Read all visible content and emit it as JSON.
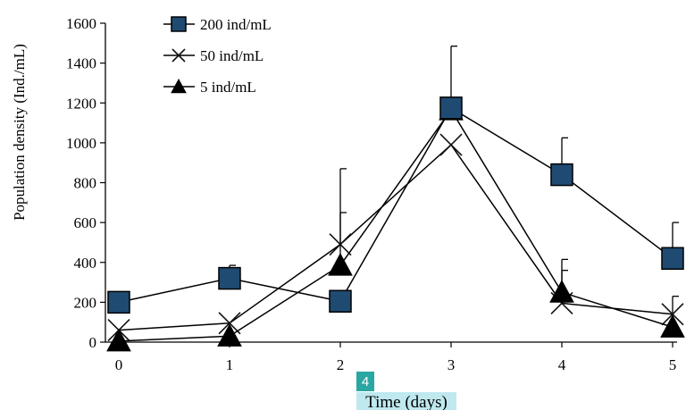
{
  "chart_data": {
    "type": "line",
    "title": "",
    "xlabel": "Time (days)",
    "ylabel": "Population density (Ind./mL)",
    "x": [
      0,
      1,
      2,
      3,
      4,
      5
    ],
    "xlim": [
      0,
      5
    ],
    "ylim": [
      0,
      1600
    ],
    "yticks": [
      0,
      200,
      400,
      600,
      800,
      1000,
      1200,
      1400,
      1600
    ],
    "grid": false,
    "legend_position": "top-left",
    "series": [
      {
        "name": "200 ind/mL",
        "marker": "square",
        "values": [
          200,
          320,
          205,
          1175,
          840,
          420
        ],
        "error": [
          0,
          65,
          0,
          310,
          185,
          180
        ]
      },
      {
        "name": "50 ind/mL",
        "marker": "x",
        "values": [
          60,
          95,
          490,
          990,
          195,
          140
        ],
        "error": [
          0,
          0,
          380,
          0,
          220,
          90
        ]
      },
      {
        "name": "5 ind/mL",
        "marker": "triangle",
        "values": [
          5,
          30,
          385,
          1165,
          250,
          75
        ],
        "error": [
          0,
          0,
          265,
          0,
          110,
          0
        ]
      }
    ],
    "colors": {
      "marker_fill": "#1e4a6e",
      "square_fill": "#1f4b73",
      "line": "#000000"
    }
  },
  "annotation_badge": "4"
}
